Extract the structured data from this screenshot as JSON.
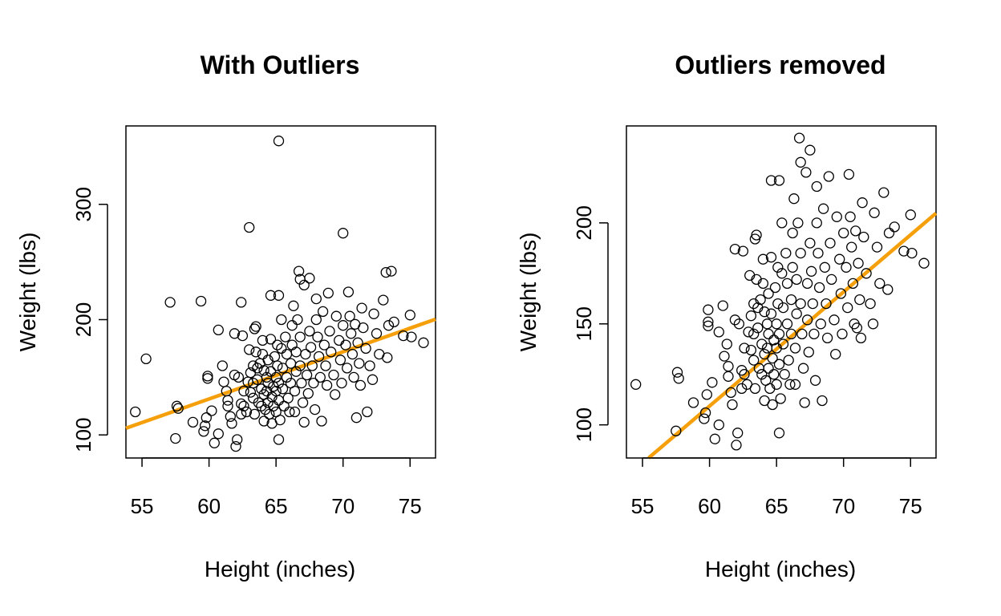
{
  "colors": {
    "fit_line": "#f5a00b",
    "points": "#000000"
  },
  "chart_data": [
    {
      "type": "scatter",
      "title": "With Outliers",
      "xlabel": "Height (inches)",
      "ylabel": "Weight (lbs)",
      "xlim": [
        53.8,
        76.9
      ],
      "ylim": [
        80,
        368
      ],
      "xticks": [
        55,
        60,
        65,
        70,
        75
      ],
      "yticks": [
        100,
        200,
        300
      ],
      "grid": false,
      "fit_line": {
        "intercept": -114.2,
        "slope": 4.09
      },
      "points": [
        [
          54.5,
          120
        ],
        [
          55.3,
          166
        ],
        [
          57.1,
          215
        ],
        [
          57.5,
          97
        ],
        [
          57.6,
          125
        ],
        [
          57.7,
          123
        ],
        [
          59.4,
          216
        ],
        [
          58.8,
          111
        ],
        [
          59.6,
          103
        ],
        [
          59.7,
          108
        ],
        [
          59.8,
          115
        ],
        [
          59.9,
          151
        ],
        [
          59.9,
          149
        ],
        [
          60.2,
          121
        ],
        [
          60.4,
          93
        ],
        [
          60.7,
          101
        ],
        [
          60.7,
          191
        ],
        [
          61.0,
          160
        ],
        [
          61.1,
          146
        ],
        [
          61.3,
          138
        ],
        [
          61.4,
          130
        ],
        [
          61.4,
          125
        ],
        [
          61.6,
          116
        ],
        [
          61.7,
          110
        ],
        [
          61.9,
          188
        ],
        [
          61.9,
          152
        ],
        [
          62.0,
          90
        ],
        [
          62.1,
          96
        ],
        [
          62.2,
          150
        ],
        [
          62.4,
          127
        ],
        [
          62.4,
          118
        ],
        [
          62.4,
          215
        ],
        [
          62.5,
          186
        ],
        [
          62.6,
          138
        ],
        [
          62.6,
          125
        ],
        [
          62.8,
          120
        ],
        [
          62.9,
          146
        ],
        [
          63.0,
          280
        ],
        [
          63.0,
          174
        ],
        [
          63.1,
          154
        ],
        [
          63.1,
          137
        ],
        [
          63.3,
          160
        ],
        [
          63.3,
          145
        ],
        [
          63.3,
          132
        ],
        [
          63.4,
          118
        ],
        [
          63.4,
          192
        ],
        [
          63.5,
          194
        ],
        [
          63.5,
          172
        ],
        [
          63.6,
          158
        ],
        [
          63.6,
          148
        ],
        [
          63.7,
          128
        ],
        [
          63.8,
          162
        ],
        [
          63.9,
          140
        ],
        [
          63.9,
          125
        ],
        [
          64.0,
          182
        ],
        [
          64.0,
          170
        ],
        [
          64.1,
          156
        ],
        [
          64.1,
          135
        ],
        [
          64.1,
          112
        ],
        [
          64.2,
          122
        ],
        [
          64.3,
          150
        ],
        [
          64.3,
          138
        ],
        [
          64.4,
          165
        ],
        [
          64.4,
          145
        ],
        [
          64.4,
          128
        ],
        [
          64.5,
          118
        ],
        [
          64.6,
          221
        ],
        [
          64.6,
          183
        ],
        [
          64.6,
          155
        ],
        [
          64.7,
          133
        ],
        [
          64.7,
          110
        ],
        [
          64.8,
          142
        ],
        [
          64.8,
          125
        ],
        [
          64.9,
          168
        ],
        [
          65.0,
          150
        ],
        [
          65.0,
          138
        ],
        [
          65.0,
          120
        ],
        [
          65.1,
          178
        ],
        [
          65.1,
          160
        ],
        [
          65.2,
          355
        ],
        [
          65.2,
          221
        ],
        [
          65.2,
          145
        ],
        [
          65.2,
          130
        ],
        [
          65.2,
          96
        ],
        [
          65.3,
          113
        ],
        [
          65.4,
          200
        ],
        [
          65.4,
          175
        ],
        [
          65.5,
          158
        ],
        [
          65.5,
          140
        ],
        [
          65.6,
          125
        ],
        [
          65.7,
          185
        ],
        [
          65.8,
          170
        ],
        [
          65.8,
          150
        ],
        [
          65.9,
          132
        ],
        [
          66.0,
          120
        ],
        [
          66.1,
          162
        ],
        [
          66.1,
          145
        ],
        [
          66.2,
          195
        ],
        [
          66.2,
          178
        ],
        [
          66.3,
          212
        ],
        [
          66.4,
          138
        ],
        [
          66.4,
          120
        ],
        [
          66.5,
          172
        ],
        [
          66.5,
          155
        ],
        [
          66.6,
          200
        ],
        [
          66.7,
          242
        ],
        [
          66.8,
          235
        ],
        [
          66.8,
          185
        ],
        [
          66.8,
          160
        ],
        [
          66.9,
          145
        ],
        [
          67.0,
          128
        ],
        [
          67.1,
          111
        ],
        [
          67.1,
          230
        ],
        [
          67.2,
          170
        ],
        [
          67.3,
          152
        ],
        [
          67.4,
          136
        ],
        [
          67.5,
          236
        ],
        [
          67.5,
          190
        ],
        [
          67.6,
          176
        ],
        [
          67.7,
          160
        ],
        [
          67.8,
          145
        ],
        [
          67.9,
          122
        ],
        [
          68.0,
          218
        ],
        [
          68.0,
          200
        ],
        [
          68.1,
          185
        ],
        [
          68.2,
          168
        ],
        [
          68.3,
          150
        ],
        [
          68.4,
          112
        ],
        [
          68.5,
          207
        ],
        [
          68.6,
          178
        ],
        [
          68.7,
          160
        ],
        [
          68.8,
          143
        ],
        [
          68.9,
          223
        ],
        [
          69.0,
          190
        ],
        [
          69.1,
          172
        ],
        [
          69.3,
          152
        ],
        [
          69.4,
          135
        ],
        [
          69.5,
          203
        ],
        [
          69.7,
          182
        ],
        [
          69.8,
          165
        ],
        [
          69.9,
          145
        ],
        [
          70.0,
          275
        ],
        [
          70.0,
          195
        ],
        [
          70.2,
          178
        ],
        [
          70.3,
          158
        ],
        [
          70.4,
          224
        ],
        [
          70.5,
          203
        ],
        [
          70.6,
          188
        ],
        [
          70.7,
          170
        ],
        [
          70.8,
          150
        ],
        [
          70.9,
          196
        ],
        [
          71.0,
          115
        ],
        [
          71.1,
          180
        ],
        [
          71.2,
          162
        ],
        [
          71.3,
          143
        ],
        [
          71.4,
          210
        ],
        [
          71.5,
          193
        ],
        [
          71.7,
          175
        ],
        [
          71.8,
          120
        ],
        [
          72.0,
          160
        ],
        [
          72.2,
          148
        ],
        [
          72.3,
          205
        ],
        [
          72.5,
          188
        ],
        [
          72.7,
          170
        ],
        [
          73.0,
          217
        ],
        [
          73.2,
          241
        ],
        [
          73.3,
          167
        ],
        [
          73.4,
          195
        ],
        [
          73.6,
          242
        ],
        [
          73.8,
          198
        ],
        [
          74.5,
          186
        ],
        [
          75.0,
          204
        ],
        [
          75.1,
          185
        ],
        [
          76.0,
          180
        ]
      ]
    },
    {
      "type": "scatter",
      "title": "Outliers removed",
      "xlabel": "Height (inches)",
      "ylabel": "Weight (lbs)",
      "xlim": [
        53.8,
        76.9
      ],
      "ylim": [
        83.6,
        248
      ],
      "xticks": [
        55,
        60,
        65,
        70,
        75
      ],
      "yticks": [
        100,
        150,
        200
      ],
      "grid": false,
      "fit_line": {
        "intercept": -229.7,
        "slope": 5.65
      },
      "points": [
        [
          54.5,
          120
        ],
        [
          57.5,
          97
        ],
        [
          57.6,
          126
        ],
        [
          57.7,
          123
        ],
        [
          58.8,
          111
        ],
        [
          59.6,
          103
        ],
        [
          59.7,
          106
        ],
        [
          59.8,
          115
        ],
        [
          59.9,
          157
        ],
        [
          59.9,
          151
        ],
        [
          59.9,
          149
        ],
        [
          60.2,
          121
        ],
        [
          60.4,
          93
        ],
        [
          60.7,
          100
        ],
        [
          60.7,
          146
        ],
        [
          61.0,
          159
        ],
        [
          61.1,
          134
        ],
        [
          61.3,
          140
        ],
        [
          61.4,
          129
        ],
        [
          61.4,
          124
        ],
        [
          61.6,
          116
        ],
        [
          61.7,
          110
        ],
        [
          61.9,
          187
        ],
        [
          61.9,
          152
        ],
        [
          62.0,
          90
        ],
        [
          62.1,
          96
        ],
        [
          62.2,
          150
        ],
        [
          62.4,
          127
        ],
        [
          62.4,
          118
        ],
        [
          62.5,
          186
        ],
        [
          62.6,
          138
        ],
        [
          62.6,
          125
        ],
        [
          62.8,
          120
        ],
        [
          62.9,
          146
        ],
        [
          63.0,
          174
        ],
        [
          63.1,
          154
        ],
        [
          63.1,
          137
        ],
        [
          63.3,
          160
        ],
        [
          63.3,
          145
        ],
        [
          63.3,
          132
        ],
        [
          63.4,
          118
        ],
        [
          63.4,
          192
        ],
        [
          63.5,
          194
        ],
        [
          63.5,
          172
        ],
        [
          63.6,
          158
        ],
        [
          63.6,
          148
        ],
        [
          63.7,
          128
        ],
        [
          63.8,
          162
        ],
        [
          63.9,
          140
        ],
        [
          63.9,
          125
        ],
        [
          64.0,
          182
        ],
        [
          64.0,
          170
        ],
        [
          64.1,
          156
        ],
        [
          64.1,
          135
        ],
        [
          64.1,
          112
        ],
        [
          64.2,
          122
        ],
        [
          64.3,
          150
        ],
        [
          64.3,
          138
        ],
        [
          64.4,
          165
        ],
        [
          64.4,
          145
        ],
        [
          64.4,
          128
        ],
        [
          64.5,
          118
        ],
        [
          64.6,
          221
        ],
        [
          64.6,
          183
        ],
        [
          64.6,
          155
        ],
        [
          64.7,
          133
        ],
        [
          64.7,
          110
        ],
        [
          64.8,
          142
        ],
        [
          64.8,
          125
        ],
        [
          64.9,
          168
        ],
        [
          65.0,
          150
        ],
        [
          65.0,
          138
        ],
        [
          65.0,
          120
        ],
        [
          65.1,
          178
        ],
        [
          65.1,
          160
        ],
        [
          65.2,
          221
        ],
        [
          65.2,
          145
        ],
        [
          65.2,
          130
        ],
        [
          65.2,
          96
        ],
        [
          65.3,
          113
        ],
        [
          65.4,
          200
        ],
        [
          65.4,
          175
        ],
        [
          65.5,
          158
        ],
        [
          65.5,
          140
        ],
        [
          65.6,
          125
        ],
        [
          65.7,
          185
        ],
        [
          65.8,
          170
        ],
        [
          65.8,
          150
        ],
        [
          65.9,
          132
        ],
        [
          66.0,
          120
        ],
        [
          66.1,
          162
        ],
        [
          66.1,
          145
        ],
        [
          66.2,
          195
        ],
        [
          66.2,
          178
        ],
        [
          66.3,
          212
        ],
        [
          66.4,
          138
        ],
        [
          66.4,
          120
        ],
        [
          66.5,
          172
        ],
        [
          66.5,
          155
        ],
        [
          66.6,
          200
        ],
        [
          66.7,
          242
        ],
        [
          66.8,
          230
        ],
        [
          66.8,
          185
        ],
        [
          66.8,
          160
        ],
        [
          66.9,
          145
        ],
        [
          67.0,
          128
        ],
        [
          67.1,
          111
        ],
        [
          67.2,
          225
        ],
        [
          67.3,
          170
        ],
        [
          67.3,
          152
        ],
        [
          67.4,
          136
        ],
        [
          67.5,
          236
        ],
        [
          67.5,
          190
        ],
        [
          67.6,
          176
        ],
        [
          67.7,
          160
        ],
        [
          67.8,
          145
        ],
        [
          67.9,
          122
        ],
        [
          68.0,
          218
        ],
        [
          68.0,
          200
        ],
        [
          68.1,
          185
        ],
        [
          68.2,
          168
        ],
        [
          68.3,
          150
        ],
        [
          68.4,
          112
        ],
        [
          68.5,
          207
        ],
        [
          68.6,
          178
        ],
        [
          68.7,
          160
        ],
        [
          68.8,
          143
        ],
        [
          68.9,
          223
        ],
        [
          69.0,
          190
        ],
        [
          69.1,
          172
        ],
        [
          69.3,
          152
        ],
        [
          69.4,
          135
        ],
        [
          69.5,
          203
        ],
        [
          69.7,
          182
        ],
        [
          69.8,
          165
        ],
        [
          69.9,
          145
        ],
        [
          70.0,
          195
        ],
        [
          70.2,
          178
        ],
        [
          70.3,
          158
        ],
        [
          70.4,
          224
        ],
        [
          70.5,
          203
        ],
        [
          70.6,
          188
        ],
        [
          70.7,
          170
        ],
        [
          70.8,
          150
        ],
        [
          70.9,
          196
        ],
        [
          71.0,
          148
        ],
        [
          71.1,
          180
        ],
        [
          71.2,
          162
        ],
        [
          71.3,
          143
        ],
        [
          71.4,
          210
        ],
        [
          71.5,
          193
        ],
        [
          71.7,
          175
        ],
        [
          72.0,
          160
        ],
        [
          72.2,
          150
        ],
        [
          72.3,
          205
        ],
        [
          72.5,
          188
        ],
        [
          72.7,
          170
        ],
        [
          73.0,
          215
        ],
        [
          73.3,
          167
        ],
        [
          73.4,
          195
        ],
        [
          73.8,
          198
        ],
        [
          74.5,
          186
        ],
        [
          75.0,
          204
        ],
        [
          75.1,
          185
        ],
        [
          76.0,
          180
        ]
      ]
    }
  ]
}
